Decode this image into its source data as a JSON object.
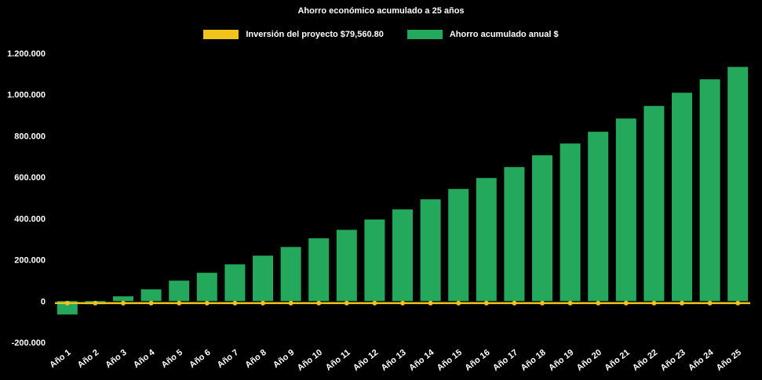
{
  "chart_data": {
    "type": "bar",
    "title": "Ahorro económico acumulado a 25 años",
    "background": "#000000",
    "text_color": "#ffffff",
    "legend_position": "top",
    "grid": false,
    "categories": [
      "Año 1",
      "Año 2",
      "Año 3",
      "Año 4",
      "Año 5",
      "Año 6",
      "Año 7",
      "Año 8",
      "Año 9",
      "Año 10",
      "Año 11",
      "Año 12",
      "Año 13",
      "Año 14",
      "Año 15",
      "Año 16",
      "Año 17",
      "Año 18",
      "Año 19",
      "Año 20",
      "Año 21",
      "Año 22",
      "Año 23",
      "Año 24",
      "Año 25"
    ],
    "ylim": [
      -200000,
      1200000
    ],
    "y_ticks": {
      "values": [
        1200000,
        1000000,
        800000,
        600000,
        400000,
        200000,
        0,
        -200000
      ],
      "labels": [
        "1.200.000",
        "1.000.000",
        "800.000",
        "600.000",
        "400.000",
        "200.000",
        "0",
        "-200.000"
      ]
    },
    "series": [
      {
        "name": "Inversión del proyecto $79,560.80",
        "type": "line",
        "color": "#f0c41b",
        "constant_value": -10000,
        "marker": "circle"
      },
      {
        "name": "Ahorro acumulado anual $",
        "type": "bar",
        "color": "#24a85b",
        "values": [
          -65000,
          -15000,
          23000,
          57000,
          99000,
          137000,
          178000,
          220000,
          262000,
          304000,
          345000,
          395000,
          444000,
          493000,
          543000,
          596000,
          649000,
          706000,
          763000,
          820000,
          884000,
          945000,
          1009000,
          1074000,
          1134000
        ]
      }
    ]
  }
}
